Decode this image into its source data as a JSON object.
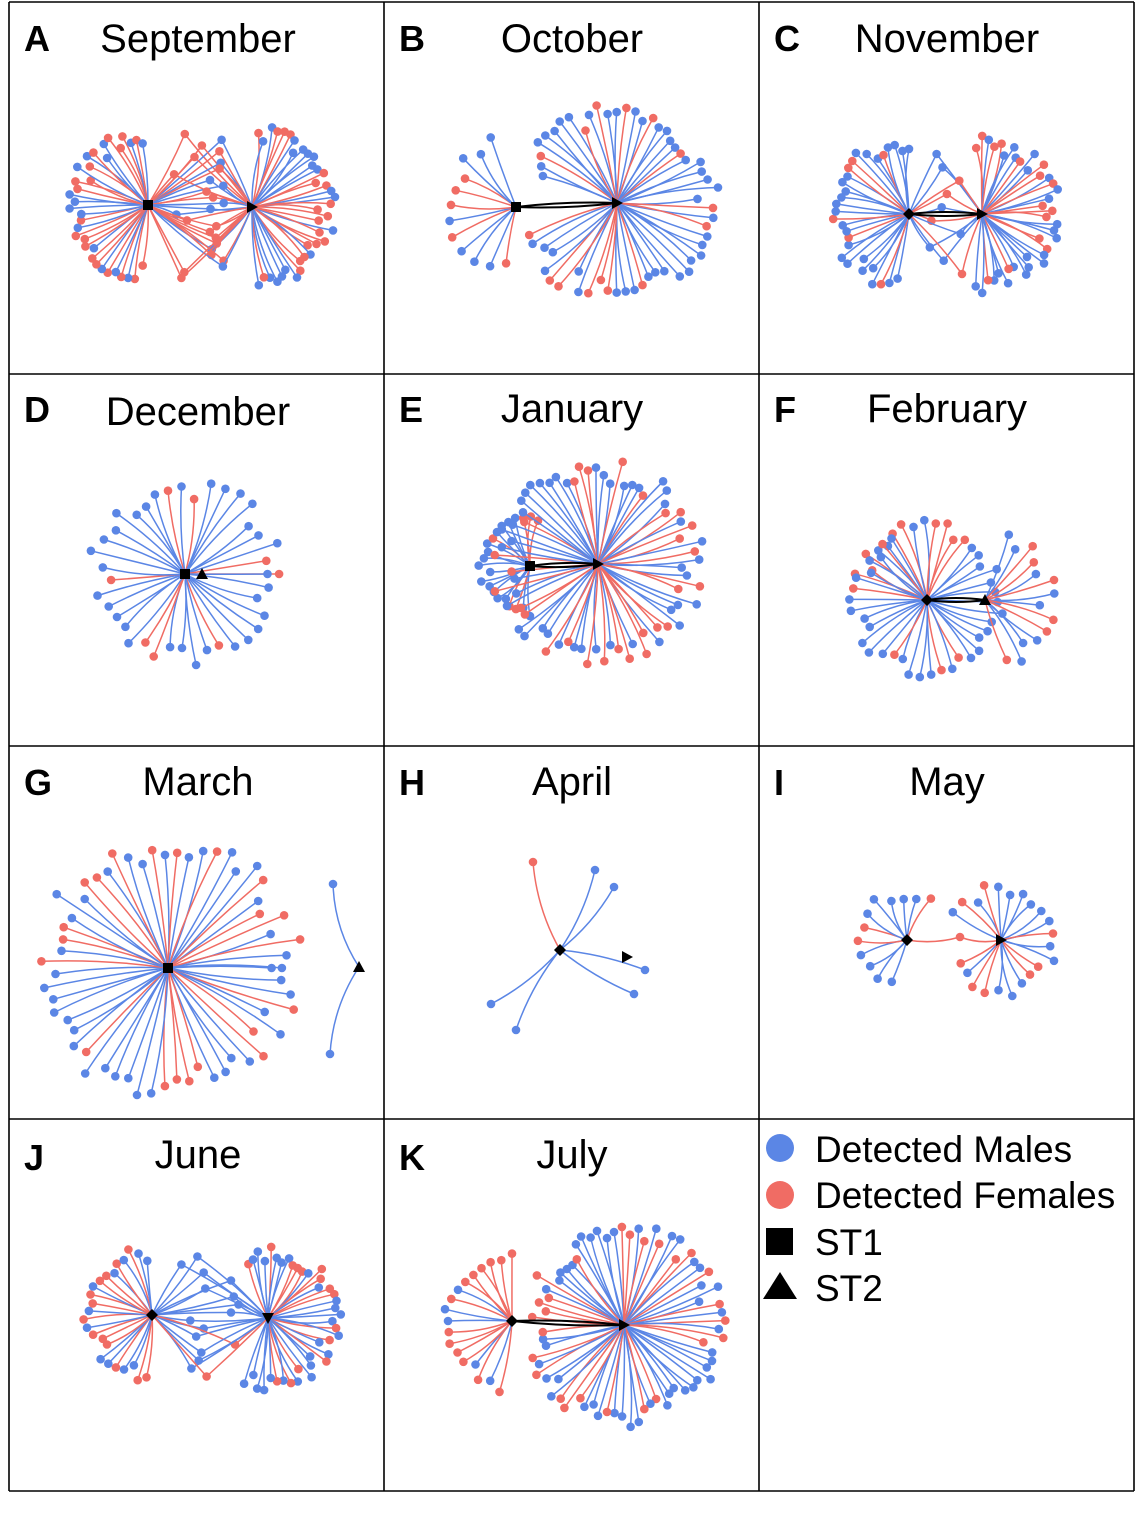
{
  "figure": {
    "panels": [
      {
        "letter": "A",
        "title": "September"
      },
      {
        "letter": "B",
        "title": "October"
      },
      {
        "letter": "C",
        "title": "November"
      },
      {
        "letter": "D",
        "title": "December"
      },
      {
        "letter": "E",
        "title": "January"
      },
      {
        "letter": "F",
        "title": "February"
      },
      {
        "letter": "G",
        "title": "March"
      },
      {
        "letter": "H",
        "title": "April"
      },
      {
        "letter": "I",
        "title": "May"
      },
      {
        "letter": "J",
        "title": "June"
      },
      {
        "letter": "K",
        "title": "July"
      }
    ],
    "legend": {
      "males": "Detected Males",
      "females": "Detected Females",
      "st1": "ST1",
      "st2": "ST2"
    }
  },
  "colors": {
    "male": "#5b86e5",
    "female": "#f06c64",
    "station": "#000000",
    "grid": "#000000"
  }
}
